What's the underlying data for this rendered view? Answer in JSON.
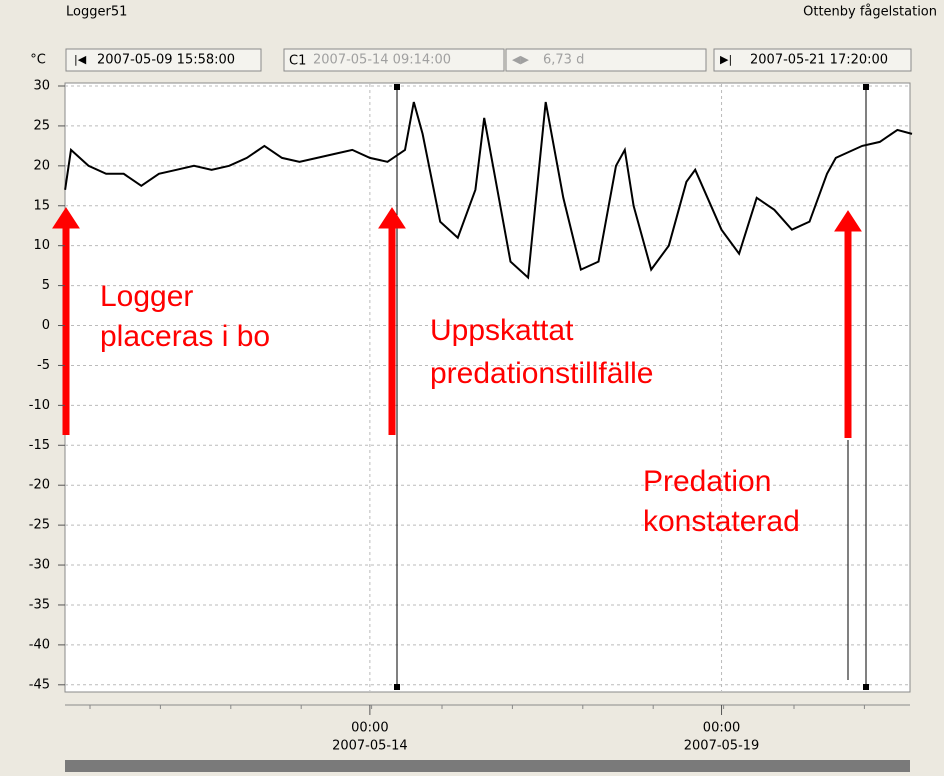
{
  "window": {
    "title": "Logger51",
    "station": "Ottenby fågelstation"
  },
  "toolbar": {
    "cursor": "C1",
    "cursor_time": "2007-05-14 09:14:00",
    "span": "6,73 d"
  },
  "chart_data": {
    "type": "line",
    "y_unit": "°C",
    "x": [
      "2007-05-09 16:00",
      "2007-05-09 18:00",
      "2007-05-10 00:00",
      "2007-05-10 06:00",
      "2007-05-10 12:00",
      "2007-05-10 18:00",
      "2007-05-11 00:00",
      "2007-05-11 06:00",
      "2007-05-11 12:00",
      "2007-05-11 18:00",
      "2007-05-12 00:00",
      "2007-05-12 06:00",
      "2007-05-12 12:00",
      "2007-05-12 18:00",
      "2007-05-13 00:00",
      "2007-05-13 06:00",
      "2007-05-13 12:00",
      "2007-05-13 18:00",
      "2007-05-14 00:00",
      "2007-05-14 06:00",
      "2007-05-14 12:00",
      "2007-05-14 15:00",
      "2007-05-14 18:00",
      "2007-05-15 00:00",
      "2007-05-15 06:00",
      "2007-05-15 12:00",
      "2007-05-15 15:00",
      "2007-05-15 18:00",
      "2007-05-16 00:00",
      "2007-05-16 06:00",
      "2007-05-16 12:00",
      "2007-05-16 18:00",
      "2007-05-17 00:00",
      "2007-05-17 06:00",
      "2007-05-17 12:00",
      "2007-05-17 15:00",
      "2007-05-17 18:00",
      "2007-05-18 00:00",
      "2007-05-18 06:00",
      "2007-05-18 12:00",
      "2007-05-18 15:00",
      "2007-05-18 18:00",
      "2007-05-19 00:00",
      "2007-05-19 06:00",
      "2007-05-19 12:00",
      "2007-05-19 18:00",
      "2007-05-20 00:00",
      "2007-05-20 06:00",
      "2007-05-20 12:00",
      "2007-05-20 15:00",
      "2007-05-20 18:00",
      "2007-05-21 00:00",
      "2007-05-21 06:00",
      "2007-05-21 12:00",
      "2007-05-21 17:00"
    ],
    "series": [
      {
        "color": "#000000",
        "values": [
          17,
          22,
          20,
          19,
          19,
          17.5,
          19,
          19.5,
          20,
          19.5,
          20,
          21,
          22.5,
          21,
          20.5,
          21,
          21.5,
          22,
          21,
          20.5,
          22,
          28,
          24,
          13,
          11,
          17,
          26,
          20,
          8,
          6,
          28,
          16,
          7,
          8,
          20,
          22,
          15,
          7,
          10,
          18,
          19.5,
          17,
          12,
          9,
          16,
          14.5,
          12,
          13,
          19,
          21,
          21.5,
          22.5,
          23,
          24.5,
          24
        ]
      }
    ],
    "xlim": [
      "2007-05-09 15:58:00",
      "2007-05-21 17:20:00"
    ],
    "xticks": [
      {
        "value": "2007-05-14 00:00",
        "label": [
          "00:00",
          "2007-05-14"
        ]
      },
      {
        "value": "2007-05-19 00:00",
        "label": [
          "00:00",
          "2007-05-19"
        ]
      }
    ],
    "ylim": [
      -45.4,
      30
    ],
    "yticks": [
      -45,
      -40,
      -35,
      -30,
      -25,
      -20,
      -15,
      -10,
      -5,
      0,
      5,
      10,
      15,
      20,
      25,
      30
    ],
    "grid": true,
    "annotations": [
      [
        "Logger",
        "placeras i bo"
      ],
      [
        "Uppskattat",
        "predationstillfälle"
      ],
      [
        "Predation",
        "konstaterad"
      ]
    ]
  }
}
